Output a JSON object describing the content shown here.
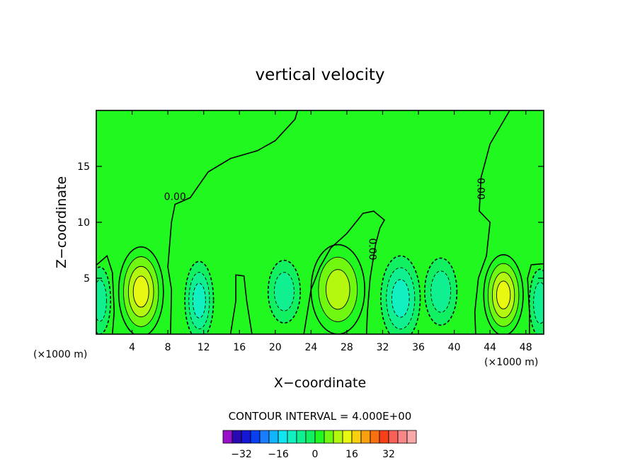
{
  "chart_data": {
    "type": "heatmap",
    "title": "vertical velocity",
    "xlabel": "X−coordinate",
    "ylabel": "Z−coordinate",
    "x_unit_left": "(×1000 m)",
    "x_unit_right": "(×1000 m)",
    "xlim": [
      0,
      50
    ],
    "ylim": [
      0,
      20
    ],
    "x_ticks": [
      4,
      8,
      12,
      16,
      20,
      24,
      28,
      32,
      36,
      40,
      44,
      48
    ],
    "y_ticks": [
      5,
      10,
      15
    ],
    "contour_interval_label": "CONTOUR INTERVAL = 4.000E+00",
    "contour_labels": [
      {
        "text": "0.00",
        "x": 8.8,
        "z": 12.0,
        "rotation": 0
      },
      {
        "text": "0.00",
        "x": 30.5,
        "z": 7.6,
        "rotation": 90
      },
      {
        "text": "0.00",
        "x": 42.6,
        "z": 13.0,
        "rotation": 90
      }
    ],
    "field_blobs": [
      {
        "x": 5.0,
        "z": 3.8,
        "rx": 2.5,
        "rz": 4.0,
        "w": 12
      },
      {
        "x": 45.5,
        "z": 3.5,
        "rx": 2.2,
        "rz": 3.6,
        "w": 10
      },
      {
        "x": 27.0,
        "z": 4.0,
        "rx": 3.0,
        "rz": 4.0,
        "w": 8
      },
      {
        "x": 11.5,
        "z": 3.0,
        "rx": 1.6,
        "rz": 3.5,
        "w": -6
      },
      {
        "x": 21.0,
        "z": 3.8,
        "rx": 1.8,
        "rz": 2.8,
        "w": -5
      },
      {
        "x": 34.0,
        "z": 3.2,
        "rx": 2.2,
        "rz": 3.8,
        "w": -6
      },
      {
        "x": 38.5,
        "z": 3.8,
        "rx": 1.8,
        "rz": 3.0,
        "w": -5
      },
      {
        "x": 49.6,
        "z": 2.8,
        "rx": 1.2,
        "rz": 3.0,
        "w": -5
      },
      {
        "x": 0.4,
        "z": 3.0,
        "rx": 1.2,
        "rz": 3.0,
        "w": -5
      }
    ],
    "colorbar": {
      "colors": [
        "#9a10c9",
        "#2a0ab0",
        "#1418d6",
        "#0a40f0",
        "#1a7cff",
        "#12b4ff",
        "#10e4f0",
        "#10f0c0",
        "#10f090",
        "#10f060",
        "#20f820",
        "#70f810",
        "#b4f810",
        "#e8f810",
        "#f8d010",
        "#f8a010",
        "#f87010",
        "#f84018",
        "#f86058",
        "#f88888",
        "#f8a8a8"
      ],
      "tick_labels": [
        "−32",
        "−16",
        "0",
        "16",
        "32"
      ],
      "tick_values": [
        -32,
        -16,
        0,
        16,
        32
      ],
      "vmin": -40,
      "vmax": 44
    }
  }
}
